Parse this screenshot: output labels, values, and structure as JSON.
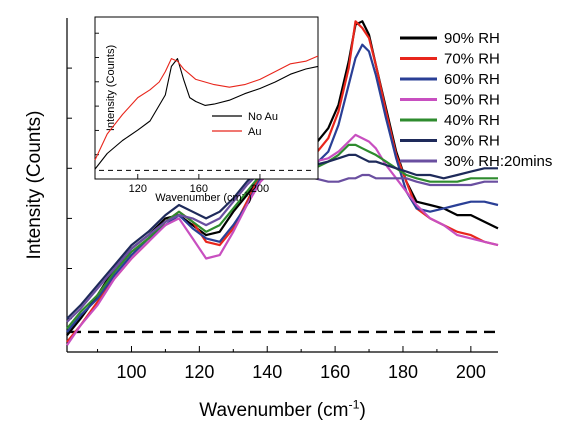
{
  "chart_data": [
    {
      "type": "line",
      "role": "main",
      "xlabel": "Wavenumber (cm",
      "xlabel_sup": "-1",
      "xlabel_close": ")",
      "ylabel": "Intensity (Counts)",
      "xlim": [
        81,
        208
      ],
      "ylim": [
        0,
        100
      ],
      "x_ticks": [
        100,
        120,
        140,
        160,
        180,
        200
      ],
      "y_tick_labels": "none",
      "baseline": {
        "y": 6,
        "style": "dashed"
      },
      "legend_position": "right",
      "series": [
        {
          "name": "90% RH",
          "color": "#000000",
          "x": [
            81,
            85,
            90,
            95,
            100,
            105,
            110,
            114,
            118,
            122,
            126,
            130,
            134,
            138,
            142,
            146,
            150,
            154,
            158,
            161,
            164,
            166,
            168,
            170,
            172,
            175,
            178,
            181,
            184,
            188,
            192,
            196,
            200,
            204,
            208
          ],
          "y": [
            5,
            10,
            17,
            25,
            31,
            35,
            40,
            41,
            38,
            35,
            36,
            42,
            47,
            52,
            58,
            59,
            61,
            62,
            67,
            74,
            87,
            98,
            99,
            95,
            86,
            73,
            60,
            51,
            45,
            44,
            43,
            41,
            41,
            39,
            37
          ]
        },
        {
          "name": "70% RH",
          "color": "#e8261c",
          "x": [
            81,
            85,
            90,
            95,
            100,
            105,
            110,
            114,
            118,
            122,
            126,
            130,
            134,
            138,
            142,
            146,
            150,
            154,
            158,
            161,
            164,
            166,
            168,
            170,
            172,
            175,
            178,
            181,
            184,
            188,
            192,
            196,
            200,
            204,
            208
          ],
          "y": [
            3,
            8,
            15,
            22,
            28,
            33,
            39,
            42,
            39,
            33,
            32,
            37,
            45,
            53,
            56,
            58,
            59,
            59,
            64,
            72,
            85,
            99,
            97,
            94,
            86,
            72,
            59,
            51,
            43,
            40,
            38,
            36,
            35,
            33,
            32
          ]
        },
        {
          "name": "60% RH",
          "color": "#2a3f96",
          "x": [
            81,
            85,
            90,
            95,
            100,
            105,
            110,
            114,
            118,
            122,
            126,
            130,
            134,
            138,
            142,
            146,
            150,
            154,
            158,
            161,
            164,
            166,
            168,
            170,
            172,
            175,
            178,
            181,
            184,
            188,
            192,
            196,
            200,
            204,
            208
          ],
          "y": [
            6,
            11,
            16,
            23,
            29,
            34,
            38,
            41,
            37,
            34,
            33,
            38,
            44,
            52,
            56,
            56,
            56,
            56,
            60,
            68,
            80,
            88,
            92,
            90,
            83,
            70,
            58,
            48,
            43,
            42,
            43,
            44,
            45,
            45,
            44
          ]
        },
        {
          "name": "50% RH",
          "color": "#c84fc0",
          "x": [
            81,
            85,
            90,
            95,
            100,
            105,
            110,
            114,
            118,
            122,
            126,
            130,
            134,
            138,
            142,
            146,
            150,
            154,
            158,
            161,
            164,
            166,
            168,
            170,
            172,
            175,
            178,
            181,
            184,
            188,
            192,
            196,
            200,
            204,
            208
          ],
          "y": [
            2,
            8,
            14,
            22,
            28,
            33,
            38,
            40,
            34,
            28,
            29,
            36,
            44,
            51,
            55,
            57,
            58,
            57,
            58,
            60,
            63,
            65,
            64,
            63,
            61,
            56,
            52,
            48,
            44,
            40,
            38,
            35,
            34,
            33,
            32
          ]
        },
        {
          "name": "40% RH",
          "color": "#2e8b2e",
          "x": [
            81,
            85,
            90,
            95,
            100,
            105,
            110,
            114,
            118,
            122,
            126,
            130,
            134,
            138,
            142,
            146,
            150,
            154,
            158,
            161,
            164,
            166,
            168,
            170,
            172,
            175,
            178,
            181,
            184,
            188,
            192,
            196,
            200,
            204,
            208
          ],
          "y": [
            7,
            12,
            17,
            24,
            30,
            34,
            39,
            42,
            39,
            36,
            38,
            43,
            48,
            53,
            55,
            56,
            56,
            55,
            57,
            59,
            62,
            62,
            61,
            60,
            59,
            57,
            55,
            53,
            52,
            51,
            51,
            51,
            52,
            52,
            52
          ]
        },
        {
          "name": "30% RH",
          "color": "#1e2a5a",
          "x": [
            81,
            85,
            90,
            95,
            100,
            105,
            110,
            114,
            118,
            122,
            126,
            130,
            134,
            138,
            142,
            146,
            150,
            154,
            158,
            161,
            164,
            166,
            168,
            170,
            172,
            175,
            178,
            181,
            184,
            188,
            192,
            196,
            200,
            204,
            208
          ],
          "y": [
            10,
            14,
            20,
            26,
            32,
            36,
            41,
            44,
            42,
            40,
            42,
            46,
            51,
            55,
            57,
            57,
            57,
            56,
            57,
            58,
            59,
            59,
            58,
            57,
            57,
            56,
            55,
            54,
            53,
            53,
            52,
            53,
            54,
            55,
            55
          ]
        },
        {
          "name": "30% RH:20mins",
          "color": "#6a4fa0",
          "x": [
            81,
            85,
            90,
            95,
            100,
            105,
            110,
            114,
            118,
            122,
            126,
            130,
            134,
            138,
            142,
            146,
            150,
            154,
            158,
            161,
            164,
            166,
            168,
            170,
            172,
            175,
            178,
            181,
            184,
            188,
            192,
            196,
            200,
            204,
            208
          ],
          "y": [
            9,
            13,
            19,
            25,
            31,
            35,
            39,
            41,
            40,
            38,
            40,
            45,
            50,
            54,
            55,
            54,
            53,
            52,
            51,
            51,
            52,
            52,
            53,
            53,
            52,
            52,
            52,
            52,
            51,
            50,
            50,
            50,
            50,
            51,
            51
          ]
        }
      ]
    },
    {
      "type": "line",
      "role": "inset",
      "xlabel": "Wavenumber (cm",
      "xlabel_sup": "-1",
      "xlabel_close": ")",
      "ylabel": "Intensity (Counts)",
      "xlim": [
        92,
        238
      ],
      "ylim": [
        0,
        100
      ],
      "x_ticks": [
        120,
        160,
        200
      ],
      "baseline": {
        "y": 2,
        "style": "dashed"
      },
      "legend_position": "lower-right",
      "series": [
        {
          "name": "No Au",
          "color": "#000000",
          "x": [
            92,
            100,
            110,
            120,
            128,
            134,
            138,
            142,
            146,
            150,
            154,
            158,
            164,
            170,
            180,
            190,
            200,
            210,
            220,
            230,
            238
          ],
          "y": [
            3,
            15,
            25,
            33,
            40,
            52,
            60,
            82,
            88,
            72,
            58,
            55,
            52,
            53,
            56,
            61,
            65,
            70,
            76,
            80,
            82
          ]
        },
        {
          "name": "Au",
          "color": "#e8261c",
          "x": [
            92,
            100,
            110,
            120,
            128,
            134,
            138,
            142,
            146,
            150,
            154,
            158,
            164,
            170,
            180,
            190,
            200,
            210,
            220,
            230,
            238
          ],
          "y": [
            10,
            30,
            45,
            58,
            64,
            70,
            78,
            88,
            86,
            80,
            76,
            72,
            70,
            68,
            66,
            68,
            72,
            78,
            84,
            86,
            90
          ]
        }
      ]
    }
  ]
}
